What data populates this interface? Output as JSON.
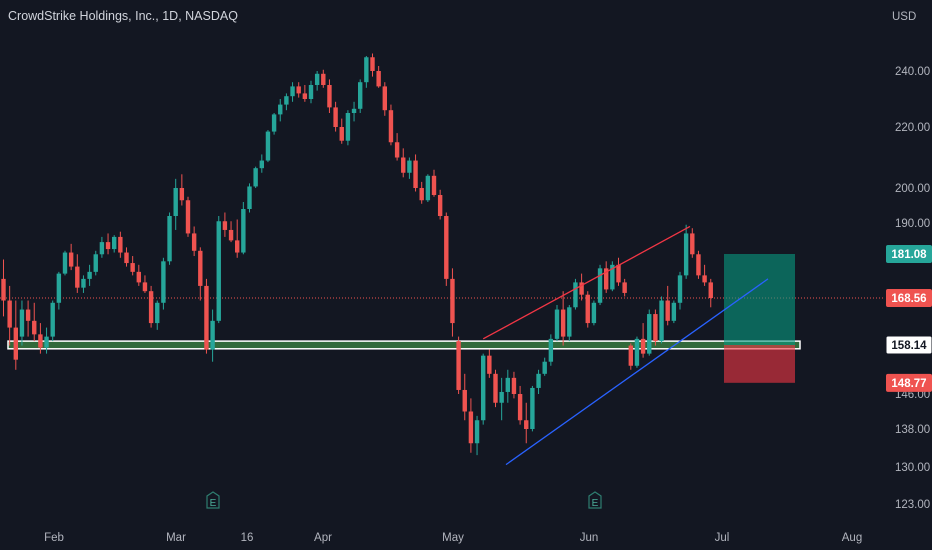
{
  "header": {
    "title": "CrowdStrike Holdings, Inc., 1D, NASDAQ"
  },
  "chart_data": {
    "type": "candlestick",
    "currency": "USD",
    "y_axis_ticks": [
      "240.00",
      "220.00",
      "200.00",
      "190.00",
      "168.56",
      "158.14",
      "146.00",
      "138.00",
      "130.00",
      "123.00"
    ],
    "y_axis_tick_values": [
      240,
      220,
      200,
      190,
      168.56,
      158.14,
      146,
      138,
      130,
      123
    ],
    "x_axis_ticks": [
      "Feb",
      "Mar",
      "16",
      "Apr",
      "May",
      "Jun",
      "Jul",
      "Aug"
    ],
    "price_labels": [
      {
        "text": "181.08",
        "value": 181.08,
        "color": "#26a69a"
      },
      {
        "text": "168.56",
        "value": 168.56,
        "color": "#ef5350"
      },
      {
        "text": "158.14",
        "value": 158.14,
        "color": "#ffffff"
      },
      {
        "text": "148.77",
        "value": 148.77,
        "color": "#ef5350"
      }
    ],
    "last_price": 168.56,
    "support_zone": {
      "low": 157.2,
      "high": 159.0
    },
    "trendlines": [
      {
        "name": "upper",
        "color": "#f23645",
        "from": {
          "x": "May 8",
          "y": 159.5
        },
        "to": {
          "x": "Jun 20",
          "y": 189.0
        }
      },
      {
        "name": "lower",
        "color": "#2962ff",
        "from": {
          "x": "May 13",
          "y": 130.5
        },
        "to": {
          "x": "Jul 18",
          "y": 174.0
        }
      }
    ],
    "position": {
      "entry": 158.14,
      "target": 181.08,
      "stop": 148.77
    },
    "earnings_markers": [
      "E",
      "E"
    ],
    "candles": [
      [
        174.0,
        179.5,
        164.5,
        168.0
      ],
      [
        168.0,
        172.0,
        158.0,
        162.0
      ],
      [
        162.0,
        168.0,
        152.0,
        154.5
      ],
      [
        160.0,
        168.0,
        158.0,
        166.0
      ],
      [
        166.0,
        168.0,
        160.0,
        163.5
      ],
      [
        163.5,
        167.5,
        159.0,
        160.5
      ],
      [
        160.5,
        163.0,
        156.0,
        157.5
      ],
      [
        157.5,
        162.0,
        156.0,
        160.0
      ],
      [
        160.0,
        168.0,
        159.0,
        167.5
      ],
      [
        167.5,
        176.0,
        166.0,
        175.5
      ],
      [
        175.5,
        182.0,
        175.0,
        181.5
      ],
      [
        181.5,
        184.0,
        176.5,
        177.5
      ],
      [
        177.5,
        181.0,
        170.0,
        171.5
      ],
      [
        171.5,
        175.0,
        170.0,
        174.0
      ],
      [
        174.0,
        178.0,
        172.0,
        176.0
      ],
      [
        176.0,
        182.0,
        175.0,
        181.0
      ],
      [
        181.0,
        186.0,
        180.0,
        184.5
      ],
      [
        184.5,
        187.0,
        181.0,
        182.5
      ],
      [
        182.5,
        186.5,
        181.5,
        186.0
      ],
      [
        186.0,
        187.5,
        180.0,
        181.5
      ],
      [
        181.5,
        183.0,
        177.5,
        178.5
      ],
      [
        178.5,
        180.5,
        175.0,
        176.0
      ],
      [
        176.0,
        178.0,
        172.0,
        173.0
      ],
      [
        173.0,
        175.0,
        170.0,
        170.5
      ],
      [
        170.5,
        172.0,
        162.0,
        163.0
      ],
      [
        163.0,
        168.0,
        161.5,
        167.5
      ],
      [
        167.5,
        180.0,
        166.0,
        179.0
      ],
      [
        179.0,
        193.0,
        178.0,
        192.0
      ],
      [
        192.0,
        203.0,
        188.0,
        200.0
      ],
      [
        200.0,
        204.5,
        195.0,
        196.5
      ],
      [
        196.5,
        197.5,
        186.0,
        187.0
      ],
      [
        187.0,
        189.0,
        180.5,
        182.0
      ],
      [
        182.0,
        183.0,
        168.0,
        172.0
      ],
      [
        172.0,
        174.0,
        156.0,
        157.0
      ],
      [
        157.0,
        166.0,
        154.0,
        163.5
      ],
      [
        163.5,
        192.0,
        163.0,
        190.5
      ],
      [
        190.5,
        193.0,
        186.0,
        188.0
      ],
      [
        188.0,
        190.5,
        184.5,
        185.0
      ],
      [
        185.0,
        191.0,
        180.0,
        181.5
      ],
      [
        181.5,
        196.0,
        181.0,
        194.0
      ],
      [
        194.0,
        201.5,
        193.0,
        200.5
      ],
      [
        200.5,
        207.0,
        200.0,
        206.5
      ],
      [
        206.5,
        211.0,
        205.0,
        209.0
      ],
      [
        209.0,
        219.0,
        208.5,
        218.5
      ],
      [
        218.5,
        225.0,
        217.5,
        224.5
      ],
      [
        224.5,
        230.0,
        222.0,
        228.0
      ],
      [
        228.0,
        232.0,
        226.0,
        231.0
      ],
      [
        231.0,
        236.0,
        229.0,
        234.5
      ],
      [
        234.5,
        236.0,
        230.5,
        232.0
      ],
      [
        232.0,
        235.0,
        229.0,
        230.0
      ],
      [
        230.0,
        236.5,
        228.5,
        235.0
      ],
      [
        235.0,
        240.0,
        233.0,
        239.0
      ],
      [
        239.0,
        240.5,
        234.0,
        235.0
      ],
      [
        235.0,
        237.0,
        225.0,
        227.0
      ],
      [
        227.0,
        229.0,
        218.5,
        220.0
      ],
      [
        220.0,
        223.0,
        214.5,
        215.5
      ],
      [
        215.5,
        226.0,
        214.0,
        225.0
      ],
      [
        225.0,
        229.0,
        222.0,
        226.5
      ],
      [
        226.5,
        237.0,
        225.0,
        236.0
      ],
      [
        236.0,
        246.0,
        234.0,
        245.5
      ],
      [
        245.5,
        247.0,
        238.0,
        240.0
      ],
      [
        240.0,
        242.0,
        234.0,
        234.5
      ],
      [
        234.5,
        236.0,
        224.0,
        226.0
      ],
      [
        226.0,
        228.0,
        214.0,
        215.0
      ],
      [
        215.0,
        218.0,
        209.0,
        210.0
      ],
      [
        210.0,
        213.0,
        203.5,
        205.0
      ],
      [
        205.0,
        210.0,
        203.0,
        209.0
      ],
      [
        209.0,
        211.0,
        199.0,
        200.0
      ],
      [
        200.0,
        202.0,
        195.5,
        196.5
      ],
      [
        196.5,
        204.5,
        196.0,
        204.0
      ],
      [
        204.0,
        206.0,
        197.5,
        198.0
      ],
      [
        198.0,
        199.5,
        191.0,
        192.0
      ],
      [
        192.0,
        193.0,
        172.0,
        174.0
      ],
      [
        174.0,
        177.0,
        160.0,
        163.0
      ],
      [
        159.0,
        160.0,
        146.0,
        147.0
      ],
      [
        147.0,
        151.0,
        140.0,
        142.0
      ],
      [
        142.0,
        145.0,
        133.0,
        135.0
      ],
      [
        135.0,
        141.0,
        132.5,
        140.0
      ],
      [
        140.0,
        156.0,
        139.0,
        155.5
      ],
      [
        155.5,
        157.0,
        150.0,
        151.0
      ],
      [
        151.0,
        152.0,
        143.0,
        144.0
      ],
      [
        144.0,
        150.0,
        140.0,
        146.5
      ],
      [
        146.5,
        152.0,
        144.0,
        150.0
      ],
      [
        150.0,
        151.5,
        145.0,
        146.0
      ],
      [
        146.0,
        148.0,
        139.0,
        140.0
      ],
      [
        140.0,
        144.0,
        135.0,
        138.0
      ],
      [
        138.0,
        148.0,
        137.5,
        147.5
      ],
      [
        147.5,
        152.0,
        146.0,
        151.0
      ],
      [
        151.0,
        155.0,
        150.5,
        154.0
      ],
      [
        154.0,
        160.5,
        153.0,
        159.5
      ],
      [
        159.5,
        167.0,
        159.0,
        166.0
      ],
      [
        166.0,
        170.5,
        158.0,
        160.0
      ],
      [
        160.0,
        167.0,
        159.0,
        166.5
      ],
      [
        166.5,
        174.0,
        166.0,
        173.0
      ],
      [
        173.0,
        175.5,
        168.0,
        169.5
      ],
      [
        169.5,
        170.5,
        162.0,
        163.0
      ],
      [
        163.0,
        168.0,
        162.5,
        167.5
      ],
      [
        167.5,
        178.0,
        167.0,
        177.0
      ],
      [
        177.0,
        179.0,
        170.0,
        171.0
      ],
      [
        171.0,
        179.0,
        170.5,
        178.0
      ],
      [
        178.0,
        180.0,
        172.0,
        173.0
      ],
      [
        173.0,
        174.0,
        169.0,
        170.0
      ],
      [
        158.0,
        158.5,
        152.0,
        153.0
      ],
      [
        153.0,
        160.0,
        152.5,
        159.5
      ],
      [
        159.5,
        163.0,
        155.0,
        156.0
      ],
      [
        156.0,
        166.0,
        155.5,
        165.0
      ],
      [
        165.0,
        166.0,
        158.0,
        159.0
      ],
      [
        159.0,
        169.0,
        158.5,
        168.0
      ],
      [
        168.0,
        172.0,
        162.5,
        163.5
      ],
      [
        163.5,
        168.0,
        163.0,
        167.5
      ],
      [
        167.5,
        176.0,
        166.0,
        175.0
      ],
      [
        175.0,
        189.5,
        174.0,
        187.0
      ],
      [
        187.0,
        188.5,
        180.0,
        181.0
      ],
      [
        181.0,
        182.0,
        174.0,
        175.0
      ],
      [
        175.0,
        178.0,
        172.0,
        173.0
      ],
      [
        173.0,
        174.0,
        166.5,
        168.56
      ]
    ]
  }
}
